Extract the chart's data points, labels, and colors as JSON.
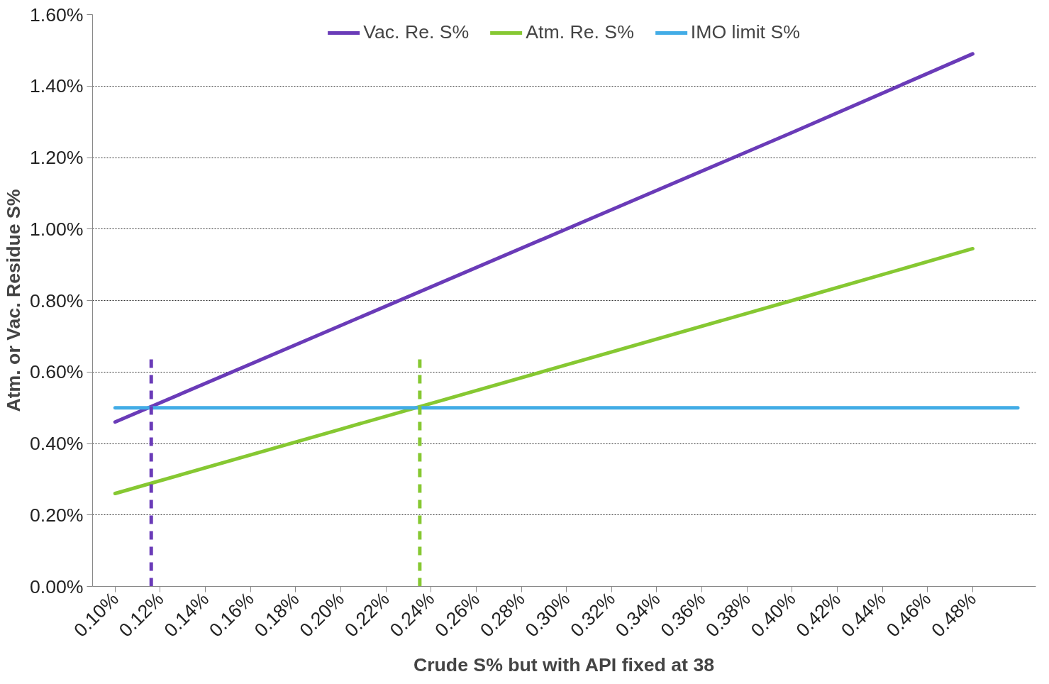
{
  "chart_data": {
    "type": "line",
    "xlabel": "Crude S% but with API fixed at 38",
    "ylabel": "Atm. or Vac. Residue S%",
    "xlim": [
      0.09,
      0.508
    ],
    "ylim": [
      0,
      1.6
    ],
    "xticks": [
      {
        "value": 0.1,
        "label": "0.10%"
      },
      {
        "value": 0.12,
        "label": "0.12%"
      },
      {
        "value": 0.14,
        "label": "0.14%"
      },
      {
        "value": 0.16,
        "label": "0.16%"
      },
      {
        "value": 0.18,
        "label": "0.18%"
      },
      {
        "value": 0.2,
        "label": "0.20%"
      },
      {
        "value": 0.22,
        "label": "0.22%"
      },
      {
        "value": 0.24,
        "label": "0.24%"
      },
      {
        "value": 0.26,
        "label": "0.26%"
      },
      {
        "value": 0.28,
        "label": "0.28%"
      },
      {
        "value": 0.3,
        "label": "0.30%"
      },
      {
        "value": 0.32,
        "label": "0.32%"
      },
      {
        "value": 0.34,
        "label": "0.34%"
      },
      {
        "value": 0.36,
        "label": "0.36%"
      },
      {
        "value": 0.38,
        "label": "0.38%"
      },
      {
        "value": 0.4,
        "label": "0.40%"
      },
      {
        "value": 0.42,
        "label": "0.42%"
      },
      {
        "value": 0.44,
        "label": "0.44%"
      },
      {
        "value": 0.46,
        "label": "0.46%"
      },
      {
        "value": 0.48,
        "label": "0.48%"
      }
    ],
    "yticks": [
      {
        "value": 0,
        "label": "0.00%"
      },
      {
        "value": 0.2,
        "label": "0.20%"
      },
      {
        "value": 0.4,
        "label": "0.40%"
      },
      {
        "value": 0.6,
        "label": "0.60%"
      },
      {
        "value": 0.8,
        "label": "0.80%"
      },
      {
        "value": 1.0,
        "label": "1.00%"
      },
      {
        "value": 1.2,
        "label": "1.20%"
      },
      {
        "value": 1.4,
        "label": "1.40%"
      },
      {
        "value": 1.6,
        "label": "1.60%"
      }
    ],
    "grid": "y",
    "legend": "top",
    "line_style": "solid",
    "series": [
      {
        "name": "Vac. Re. S%",
        "color": "#6a3bb8",
        "x": [
          0.1,
          0.2,
          0.3,
          0.4,
          0.48
        ],
        "values": [
          0.46,
          0.73,
          1.0,
          1.27,
          1.49
        ]
      },
      {
        "name": "Atm. Re. S%",
        "color": "#86c832",
        "x": [
          0.1,
          0.2,
          0.3,
          0.4,
          0.48
        ],
        "values": [
          0.26,
          0.44,
          0.62,
          0.8,
          0.945
        ]
      },
      {
        "name": "IMO limit S%",
        "color": "#42ace6",
        "x": [
          0.1,
          0.5
        ],
        "values": [
          0.5,
          0.5
        ]
      },
      {
        "color": "#6a3bb8",
        "line_style": "dashed",
        "x": [
          0.116,
          0.116
        ],
        "values": [
          0,
          0.64
        ]
      },
      {
        "color": "#86c832",
        "line_style": "dashed",
        "x": [
          0.235,
          0.235
        ],
        "values": [
          0,
          0.64
        ]
      }
    ]
  }
}
